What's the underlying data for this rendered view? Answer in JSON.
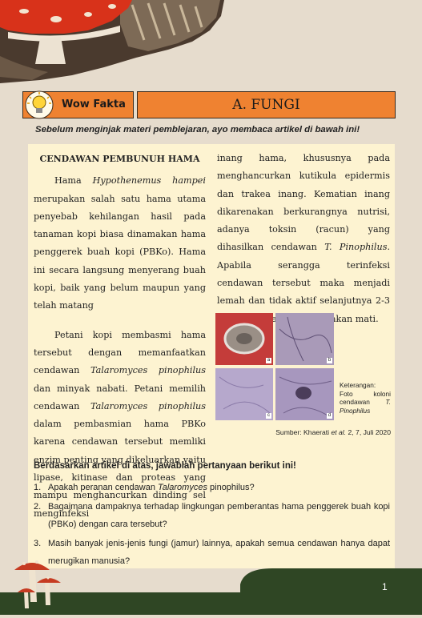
{
  "header": {
    "badge_label": "Wow Fakta",
    "section_title": "A. FUNGI"
  },
  "intro": "Sebelum menginjak materi pemblejaran, ayo membaca artikel di bawah ini!",
  "article": {
    "heading": "CENDAWAN PEMBUNUH HAMA",
    "p1": {
      "a": "Hama ",
      "b": "Hypothenemus hampei",
      "c": " merupakan salah satu hama utama penyebab kehilangan hasil pada tanaman kopi biasa dinamakan hama penggerek buah kopi (PBKo). Hama ini secara langsung menyerang buah kopi, baik yang belum maupun yang telah matang"
    },
    "p2": {
      "a": "Petani kopi membasmi hama tersebut dengan memanfaatkan cendawan ",
      "b": "Talaromyces pinophilus",
      "c": " dan minyak nabati. Petani memilih cendawan ",
      "d": "Talaromyces pinophilus",
      "e": " dalam pembasmian hama PBKo karena cendawan tersebut memliki enzim penting yang dikeluarkan yaitu lipase, kitinase dan proteas yang mampu menghancurkan dinding sel menginfeksi"
    },
    "p3": {
      "a": "inang hama, khususnya pada menghancurkan kutikula epidermis dan trakea inang. Kematian inang dikarenakan berkurangnya nutrisi, adanya toksin (racun) yang dihasilkan cendawan ",
      "b": "T. Pinophilus",
      "c": ". Apabila serangga terinfeksi cendawan tersebut maka menjadi lemah dan tidak aktif selanjutnya 2-3 hari kemudian serangga akan mati."
    },
    "caption": {
      "label": "Keterangan:",
      "text": "Foto koloni cendawan ",
      "species": "T. Pinophilus"
    },
    "photo_labels": [
      "a",
      "b",
      "c",
      "d"
    ],
    "source": {
      "a": "Sumber: Khaerati ",
      "b": "et al.",
      "c": " 2, 7, Juli 2020"
    }
  },
  "questions": {
    "heading": "Berdasarkan artikel di atas, jawablah pertanyaan berikut ini!",
    "items": [
      {
        "num": "1.",
        "a": "Apakah peranan cendawan ",
        "b": "Talaromyces",
        "c": " pinophilus?"
      },
      {
        "num": "2.",
        "a": "Bagaimana dampaknya terhadap lingkungan pemberantas hama penggerek buah kopi (PBKo) dengan cara tersebut?",
        "b": "",
        "c": ""
      },
      {
        "num": "3.",
        "a": "Masih banyak jenis-jenis fungi (jamur) lainnya, apakah semua cendawan hanya dapat merugikan manusia?",
        "b": "",
        "c": ""
      }
    ]
  },
  "page_number": "1",
  "colors": {
    "accent": "#ef8231",
    "page_bg": "#e6dccd",
    "card_bg": "#fdf3d1",
    "footer_green": "#2f4624"
  }
}
